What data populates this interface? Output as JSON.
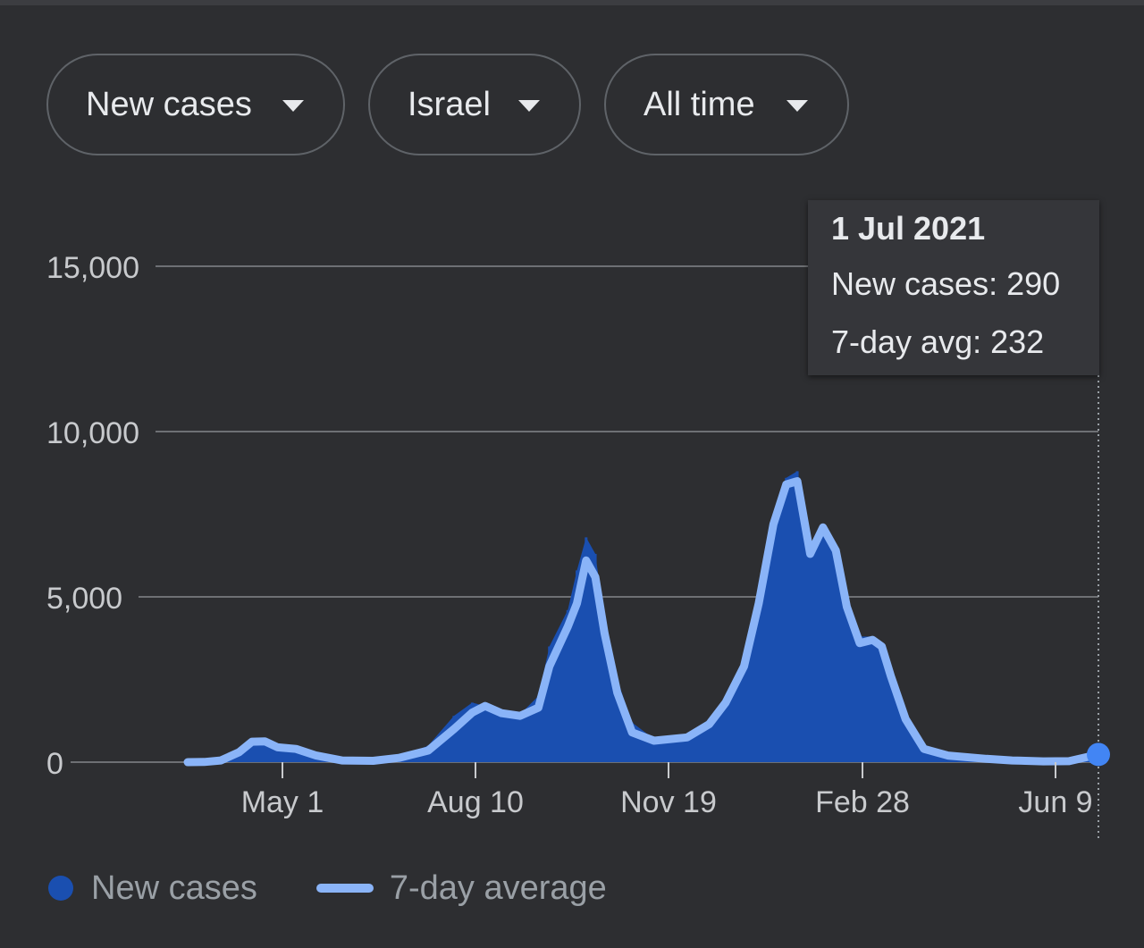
{
  "filters": {
    "metric": "New cases",
    "location": "Israel",
    "range": "All time"
  },
  "tooltip": {
    "date": "1 Jul 2021",
    "new_cases": "New cases: 290",
    "avg": "7-day avg: 232"
  },
  "legend": {
    "new_cases": "New cases",
    "avg": "7-day average"
  },
  "colors": {
    "bars": "#1a4fb0",
    "avg_line": "#8ab4f8",
    "background": "#2d2e31",
    "grid": "#6e7074"
  },
  "chart_data": {
    "type": "bar",
    "x_ticks": [
      "May 1",
      "Aug 10",
      "Nov 19",
      "Feb 28",
      "Jun 9"
    ],
    "y_ticks": [
      "0",
      "5,000",
      "10,000",
      "15,000"
    ],
    "ylim": [
      0,
      15000
    ],
    "xlim": [
      "2020-02-21",
      "2021-07-01"
    ],
    "grid": true,
    "legend_position": "bottom-left",
    "series": [
      {
        "name": "New cases",
        "type": "bar",
        "points": [
          [
            "2020-02-21",
            0
          ],
          [
            "2020-03-01",
            5
          ],
          [
            "2020-03-10",
            50
          ],
          [
            "2020-03-20",
            300
          ],
          [
            "2020-03-27",
            600
          ],
          [
            "2020-04-03",
            650
          ],
          [
            "2020-04-10",
            520
          ],
          [
            "2020-04-20",
            330
          ],
          [
            "2020-05-01",
            150
          ],
          [
            "2020-05-15",
            30
          ],
          [
            "2020-06-01",
            50
          ],
          [
            "2020-06-15",
            150
          ],
          [
            "2020-07-01",
            500
          ],
          [
            "2020-07-15",
            1400
          ],
          [
            "2020-07-25",
            1800
          ],
          [
            "2020-08-01",
            1700
          ],
          [
            "2020-08-10",
            1500
          ],
          [
            "2020-08-20",
            1450
          ],
          [
            "2020-08-30",
            2000
          ],
          [
            "2020-09-05",
            3500
          ],
          [
            "2020-09-15",
            4600
          ],
          [
            "2020-09-20",
            5800
          ],
          [
            "2020-09-25",
            6800
          ],
          [
            "2020-09-30",
            6300
          ],
          [
            "2020-10-05",
            4300
          ],
          [
            "2020-10-12",
            2500
          ],
          [
            "2020-10-20",
            1200
          ],
          [
            "2020-11-01",
            700
          ],
          [
            "2020-11-19",
            800
          ],
          [
            "2020-12-01",
            1300
          ],
          [
            "2020-12-10",
            2000
          ],
          [
            "2020-12-20",
            3000
          ],
          [
            "2020-12-28",
            4800
          ],
          [
            "2021-01-05",
            7300
          ],
          [
            "2021-01-12",
            8600
          ],
          [
            "2021-01-18",
            8800
          ],
          [
            "2021-01-25",
            6500
          ],
          [
            "2021-02-01",
            7200
          ],
          [
            "2021-02-08",
            6500
          ],
          [
            "2021-02-14",
            4800
          ],
          [
            "2021-02-21",
            3800
          ],
          [
            "2021-02-28",
            3800
          ],
          [
            "2021-03-05",
            3500
          ],
          [
            "2021-03-10",
            2800
          ],
          [
            "2021-03-18",
            1500
          ],
          [
            "2021-03-28",
            500
          ],
          [
            "2021-04-10",
            250
          ],
          [
            "2021-05-01",
            100
          ],
          [
            "2021-05-15",
            40
          ],
          [
            "2021-06-01",
            20
          ],
          [
            "2021-06-15",
            30
          ],
          [
            "2021-07-01",
            290
          ]
        ]
      },
      {
        "name": "7-day average",
        "type": "line",
        "points": [
          [
            "2020-02-21",
            0
          ],
          [
            "2020-03-01",
            5
          ],
          [
            "2020-03-10",
            50
          ],
          [
            "2020-03-20",
            300
          ],
          [
            "2020-03-27",
            620
          ],
          [
            "2020-04-03",
            630
          ],
          [
            "2020-04-10",
            450
          ],
          [
            "2020-04-20",
            400
          ],
          [
            "2020-05-01",
            200
          ],
          [
            "2020-05-15",
            50
          ],
          [
            "2020-06-01",
            40
          ],
          [
            "2020-06-15",
            130
          ],
          [
            "2020-07-01",
            350
          ],
          [
            "2020-07-15",
            1000
          ],
          [
            "2020-07-25",
            1500
          ],
          [
            "2020-08-01",
            1700
          ],
          [
            "2020-08-10",
            1480
          ],
          [
            "2020-08-20",
            1400
          ],
          [
            "2020-08-30",
            1650
          ],
          [
            "2020-09-05",
            2900
          ],
          [
            "2020-09-15",
            4100
          ],
          [
            "2020-09-20",
            4800
          ],
          [
            "2020-09-25",
            6100
          ],
          [
            "2020-09-30",
            5600
          ],
          [
            "2020-10-05",
            3900
          ],
          [
            "2020-10-12",
            2100
          ],
          [
            "2020-10-20",
            900
          ],
          [
            "2020-11-01",
            650
          ],
          [
            "2020-11-19",
            750
          ],
          [
            "2020-12-01",
            1150
          ],
          [
            "2020-12-10",
            1800
          ],
          [
            "2020-12-20",
            2900
          ],
          [
            "2020-12-28",
            4800
          ],
          [
            "2021-01-05",
            7200
          ],
          [
            "2021-01-12",
            8400
          ],
          [
            "2021-01-18",
            8500
          ],
          [
            "2021-01-25",
            6300
          ],
          [
            "2021-02-01",
            7100
          ],
          [
            "2021-02-08",
            6400
          ],
          [
            "2021-02-14",
            4700
          ],
          [
            "2021-02-21",
            3600
          ],
          [
            "2021-02-28",
            3700
          ],
          [
            "2021-03-05",
            3500
          ],
          [
            "2021-03-10",
            2600
          ],
          [
            "2021-03-18",
            1300
          ],
          [
            "2021-03-28",
            400
          ],
          [
            "2021-04-10",
            200
          ],
          [
            "2021-05-01",
            100
          ],
          [
            "2021-05-15",
            50
          ],
          [
            "2021-06-01",
            25
          ],
          [
            "2021-06-15",
            30
          ],
          [
            "2021-07-01",
            232
          ]
        ]
      }
    ]
  }
}
